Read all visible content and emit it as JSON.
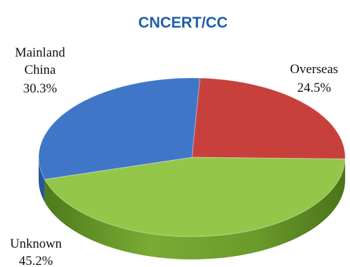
{
  "watermark": {
    "text": "CNCERT/CC",
    "color": "#1f5fa8",
    "ring_color": "#3aa0e0"
  },
  "chart_data": {
    "type": "pie",
    "style": "3d",
    "title": "",
    "slices": [
      {
        "name": "Mainland China",
        "label_lines": [
          "Mainland",
          "China"
        ],
        "value": 30.3,
        "value_label": "30.3%",
        "color": "#3f76c8",
        "color_dark": "#2a5598"
      },
      {
        "name": "Overseas",
        "label_lines": [
          "Overseas"
        ],
        "value": 24.5,
        "value_label": "24.5%",
        "color": "#c8403c",
        "color_dark": "#8f2624"
      },
      {
        "name": "Unknown",
        "label_lines": [
          "Unknown"
        ],
        "value": 45.2,
        "value_label": "45.2%",
        "color": "#94c64a",
        "color_dark": "#5e8a23"
      }
    ],
    "legend": "none"
  }
}
